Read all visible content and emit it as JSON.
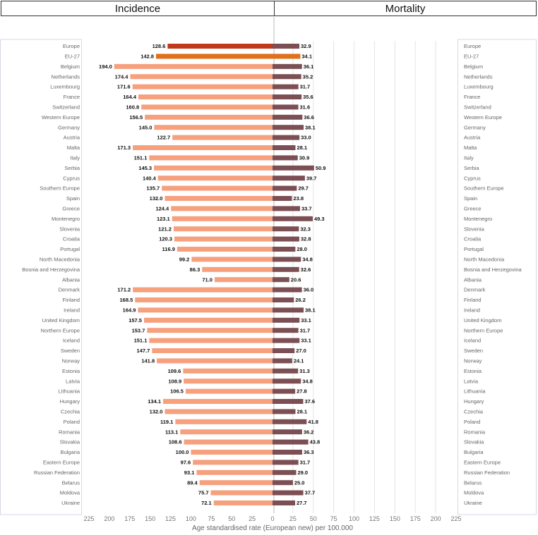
{
  "headers": {
    "left": "Incidence",
    "right": "Mortality"
  },
  "chart_data": {
    "type": "bar",
    "orientation": "horizontal-butterfly",
    "xlabel": "Age standardised rate (European new) per 100.000",
    "xlim": [
      0,
      225
    ],
    "ticks": [
      225,
      200,
      175,
      150,
      125,
      100,
      75,
      50,
      25,
      0,
      25,
      50,
      75,
      100,
      125,
      150,
      175,
      200,
      225
    ],
    "grid": true,
    "colors": {
      "incidence": "#f6a07e",
      "mortality": "#7b4f53",
      "europe_incidence": "#c0391b",
      "europe_mortality": "#7b4f53",
      "eu27_incidence": "#e07019",
      "eu27_mortality": "#e07019"
    },
    "categories": [
      "Europe",
      "EU-27",
      "Belgium",
      "Netherlands",
      "Luxembourg",
      "France",
      "Switzerland",
      "Western Europe",
      "Germany",
      "Austria",
      "Malta",
      "Italy",
      "Serbia",
      "Cyprus",
      "Southern Europe",
      "Spain",
      "Greece",
      "Montenegro",
      "Slovenia",
      "Croatia",
      "Portugal",
      "North Macedonia",
      "Bosnia and Herzegovina",
      "Albania",
      "Denmark",
      "Finland",
      "Ireland",
      "United Kingdom",
      "Northern Europe",
      "Iceland",
      "Sweden",
      "Norway",
      "Estonia",
      "Latvia",
      "Lithuania",
      "Hungary",
      "Czechia",
      "Poland",
      "Romania",
      "Slovakia",
      "Bulgaria",
      "Eastern Europe",
      "Russian Federation",
      "Belarus",
      "Moldova",
      "Ukraine"
    ],
    "series": [
      {
        "name": "Incidence",
        "values": [
          128.6,
          142.8,
          194.0,
          174.4,
          171.6,
          164.4,
          160.8,
          156.5,
          145.0,
          122.7,
          171.3,
          151.1,
          145.3,
          140.4,
          135.7,
          132.0,
          124.4,
          123.1,
          121.2,
          120.3,
          116.9,
          99.2,
          86.3,
          71.0,
          171.2,
          168.5,
          164.9,
          157.5,
          153.7,
          151.1,
          147.7,
          141.8,
          109.6,
          108.9,
          106.5,
          134.1,
          132.0,
          119.1,
          113.1,
          108.6,
          100.0,
          97.6,
          93.1,
          89.4,
          75.7,
          72.1
        ],
        "labels": [
          "128.6",
          "142.8",
          "194.0",
          "174.4",
          "171.6",
          "164.4",
          "160.8",
          "156.5",
          "145.0",
          "122.7",
          "171.3",
          "151.1",
          "145.3",
          "140.4",
          "135.7",
          "132.0",
          "124.4",
          "123.1",
          "121.2",
          "120.3",
          "116.9",
          "99.2",
          "86.3",
          "71.0",
          "171.2",
          "168.5",
          "164.9",
          "157.5",
          "153.7",
          "151.1",
          "147.7",
          "141.8",
          "109.6",
          "108.9",
          "106.5",
          "134.1",
          "132.0",
          "119.1",
          "113.1",
          "108.6",
          "100.0",
          "97.6",
          "93.1",
          "89.4",
          "75.7",
          "72.1"
        ]
      },
      {
        "name": "Mortality",
        "values": [
          32.9,
          34.1,
          36.1,
          35.2,
          31.7,
          35.6,
          31.6,
          36.6,
          38.1,
          33.0,
          28.1,
          30.9,
          50.9,
          39.7,
          29.7,
          23.8,
          33.7,
          49.3,
          32.3,
          32.8,
          28.0,
          34.8,
          32.6,
          20.6,
          36.0,
          26.2,
          38.1,
          33.1,
          31.7,
          33.1,
          27.0,
          24.1,
          31.3,
          34.8,
          27.8,
          37.6,
          28.1,
          41.8,
          36.2,
          43.8,
          36.3,
          31.7,
          29.0,
          25.0,
          37.7,
          27.7
        ],
        "labels": [
          "32.9",
          "34.1",
          "36.1",
          "35.2",
          "31.7",
          "35.6",
          "31.6",
          "36.6",
          "38.1",
          "33.0",
          "28.1",
          "30.9",
          "50.9",
          "39.7",
          "29.7",
          "23.8",
          "33.7",
          "49.3",
          "32.3",
          "32.8",
          "28.0",
          "34.8",
          "32.6",
          "20.6",
          "36.0",
          "26.2",
          "38.1",
          "33.1",
          "31.7",
          "33.1",
          "27.0",
          "24.1",
          "31.3",
          "34.8",
          "27.8",
          "37.6",
          "28.1",
          "41.8",
          "36.2",
          "43.8",
          "36.3",
          "31.7",
          "29.0",
          "25.0",
          "37.7",
          "27.7"
        ]
      }
    ]
  }
}
